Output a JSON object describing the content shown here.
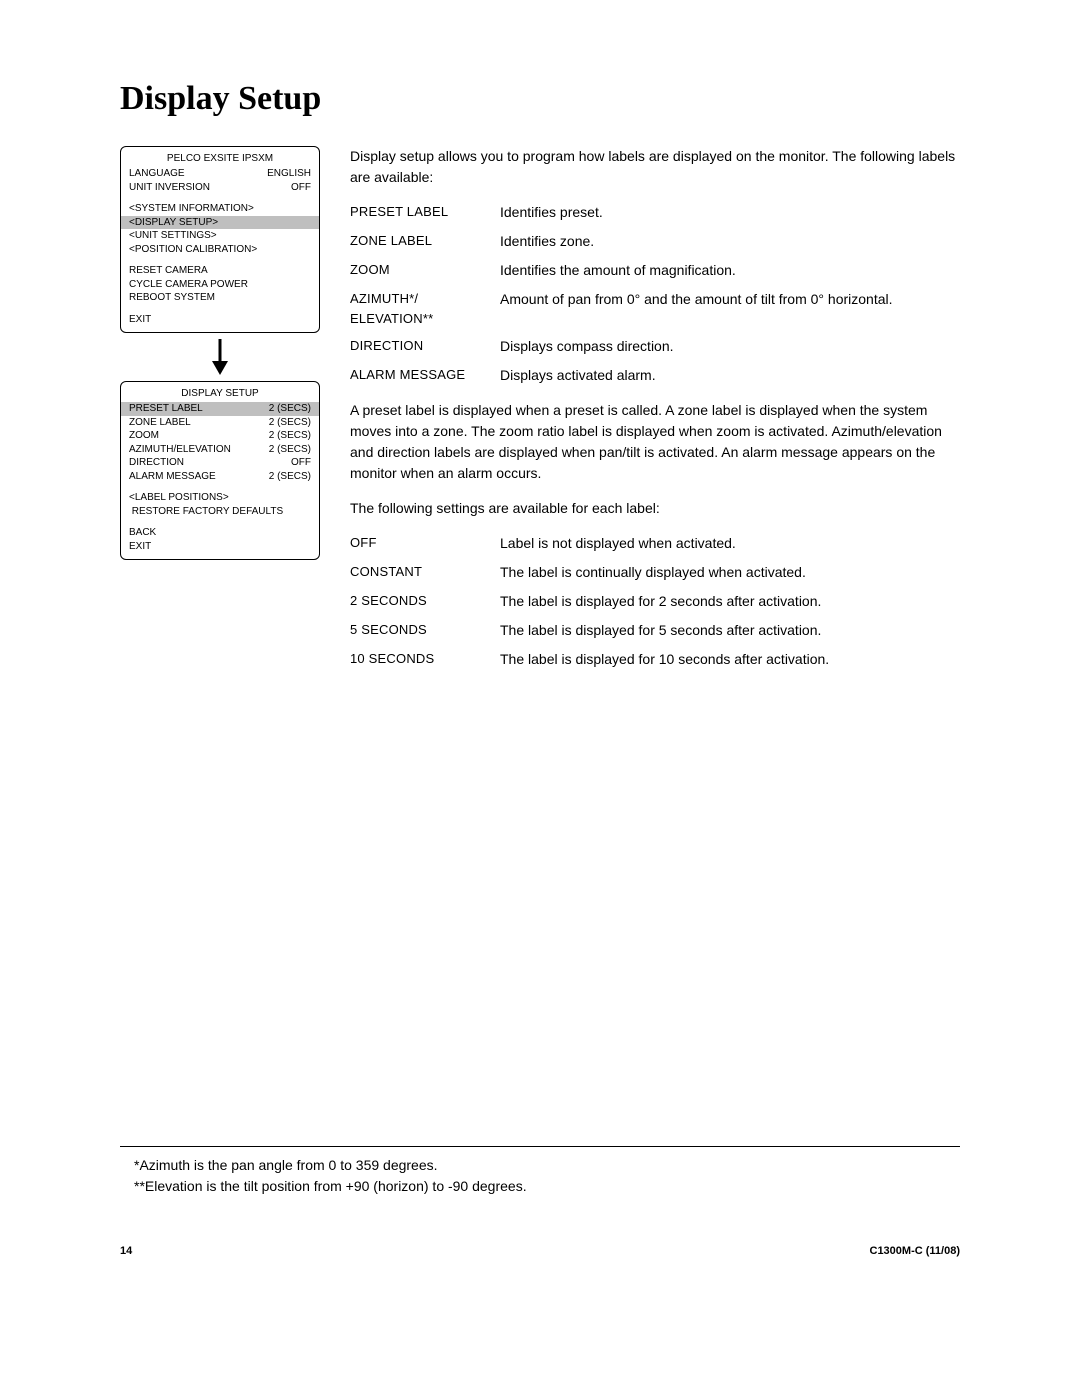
{
  "title": "Display Setup",
  "menu1": {
    "title": "PELCO EXSITE IPSXM",
    "rows": [
      {
        "left": "LANGUAGE",
        "right": "ENGLISH",
        "highlight": false
      },
      {
        "left": "UNIT INVERSION",
        "right": "OFF",
        "highlight": false
      },
      {
        "sep": true
      },
      {
        "left": "<SYSTEM INFORMATION>",
        "right": "",
        "highlight": false
      },
      {
        "left": "<DISPLAY SETUP>",
        "right": "",
        "highlight": true
      },
      {
        "left": "<UNIT SETTINGS>",
        "right": "",
        "highlight": false
      },
      {
        "left": "<POSITION CALIBRATION>",
        "right": "",
        "highlight": false
      },
      {
        "sep": true
      },
      {
        "left": "RESET CAMERA",
        "right": "",
        "highlight": false
      },
      {
        "left": "CYCLE CAMERA POWER",
        "right": "",
        "highlight": false
      },
      {
        "left": "REBOOT SYSTEM",
        "right": "",
        "highlight": false
      },
      {
        "sep": true
      },
      {
        "left": "EXIT",
        "right": "",
        "highlight": false
      }
    ]
  },
  "menu2": {
    "title": "DISPLAY SETUP",
    "rows": [
      {
        "left": "PRESET LABEL",
        "right": "2 (SECS)",
        "highlight": true
      },
      {
        "left": "ZONE LABEL",
        "right": "2 (SECS)",
        "highlight": false
      },
      {
        "left": "ZOOM",
        "right": "2 (SECS)",
        "highlight": false
      },
      {
        "left": "AZIMUTH/ELEVATION",
        "right": "2 (SECS)",
        "highlight": false
      },
      {
        "left": "DIRECTION",
        "right": "OFF",
        "highlight": false
      },
      {
        "left": "ALARM MESSAGE",
        "right": "2 (SECS)",
        "highlight": false
      },
      {
        "sep": true
      },
      {
        "left": "<LABEL POSITIONS>",
        "right": "",
        "highlight": false
      },
      {
        "left": " RESTORE FACTORY DEFAULTS",
        "right": "",
        "highlight": false
      },
      {
        "sep": true
      },
      {
        "left": "BACK",
        "right": "",
        "highlight": false
      },
      {
        "left": "EXIT",
        "right": "",
        "highlight": false
      }
    ]
  },
  "intro": "Display setup allows you to program how labels are displayed on the monitor. The following labels are available:",
  "labels": [
    {
      "term": "PRESET LABEL",
      "desc": "Identifies preset."
    },
    {
      "term": "ZONE LABEL",
      "desc": "Identifies zone."
    },
    {
      "term": "ZOOM",
      "desc": "Identifies the amount of magnification."
    },
    {
      "term": "AZIMUTH*/\nELEVATION**",
      "desc": "Amount of pan from 0° and the amount of tilt from 0° horizontal."
    },
    {
      "term": "DIRECTION",
      "desc": "Displays compass direction."
    },
    {
      "term": "ALARM MESSAGE",
      "desc": "Displays activated alarm."
    }
  ],
  "para1": "A preset label is displayed when a preset is called. A zone label is displayed when the system moves into a zone. The zoom ratio label is displayed when zoom is activated. Azimuth/elevation and direction labels are displayed when pan/tilt is activated. An alarm message appears on the monitor when an alarm occurs.",
  "para2": "The following settings are available for each label:",
  "settings": [
    {
      "term": "OFF",
      "desc": "Label is not displayed when activated."
    },
    {
      "term": "CONSTANT",
      "desc": "The label is continually displayed when activated."
    },
    {
      "term": "2 SECONDS",
      "desc": "The label is displayed for 2 seconds after activation."
    },
    {
      "term": "5 SECONDS",
      "desc": "The label is displayed for 5 seconds after activation."
    },
    {
      "term": "10 SECONDS",
      "desc": "The label is displayed for 10 seconds after activation."
    }
  ],
  "footnotes": [
    "*Azimuth is the pan angle from 0 to 359 degrees.",
    "**Elevation is the tilt position from +90 (horizon) to -90 degrees."
  ],
  "footer": {
    "page": "14",
    "doc": "C1300M-C (11/08)"
  }
}
